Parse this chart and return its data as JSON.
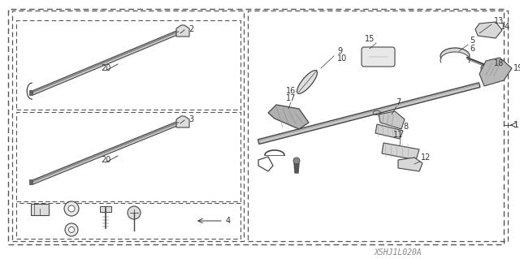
{
  "bg_color": "#ffffff",
  "lc": "#444444",
  "tc": "#333333",
  "watermark": "XSHJ1L020A",
  "fig_w": 6.4,
  "fig_h": 3.19,
  "dpi": 100
}
